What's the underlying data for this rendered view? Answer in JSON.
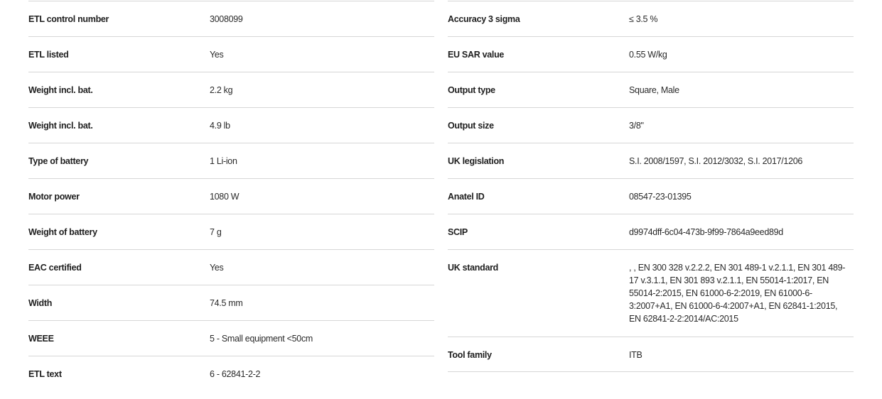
{
  "left_specs": [
    {
      "label": "ETL control number",
      "value": "3008099"
    },
    {
      "label": "ETL listed",
      "value": "Yes"
    },
    {
      "label": "Weight incl. bat.",
      "value": "2.2 kg"
    },
    {
      "label": "Weight incl. bat.",
      "value": "4.9 lb"
    },
    {
      "label": "Type of battery",
      "value": "1 Li-ion"
    },
    {
      "label": "Motor power",
      "value": "1080 W"
    },
    {
      "label": "Weight of battery",
      "value": "7 g"
    },
    {
      "label": "EAC certified",
      "value": "Yes"
    },
    {
      "label": "Width",
      "value": "74.5 mm"
    },
    {
      "label": "WEEE",
      "value": "5 - Small equipment <50cm"
    },
    {
      "label": "ETL text",
      "value": "6 - 62841-2-2"
    }
  ],
  "right_specs": [
    {
      "label": "Accuracy 3 sigma",
      "value": "≤ 3.5 %"
    },
    {
      "label": "EU SAR value",
      "value": "0.55 W/kg"
    },
    {
      "label": "Output type",
      "value": "Square, Male"
    },
    {
      "label": "Output size",
      "value": "3/8\""
    },
    {
      "label": "UK legislation",
      "value": "S.I. 2008/1597, S.I. 2012/3032, S.I. 2017/1206"
    },
    {
      "label": "Anatel ID",
      "value": "08547-23-01395"
    },
    {
      "label": "SCIP",
      "value": "d9974dff-6c04-473b-9f99-7864a9eed89d"
    },
    {
      "label": "UK standard",
      "value": ", , EN 300 328 v.2.2.2, EN 301 489-1 v.2.1.1, EN 301 489-17 v.3.1.1, EN 301 893 v.2.1.1, EN 55014-1:2017, EN 55014-2:2015, EN 61000-6-2:2019, EN 61000-6-3:2007+A1, EN 61000-6-4:2007+A1, EN 62841-1:2015, EN 62841-2-2:2014/AC:2015"
    },
    {
      "label": "Tool family",
      "value": "ITB"
    }
  ]
}
